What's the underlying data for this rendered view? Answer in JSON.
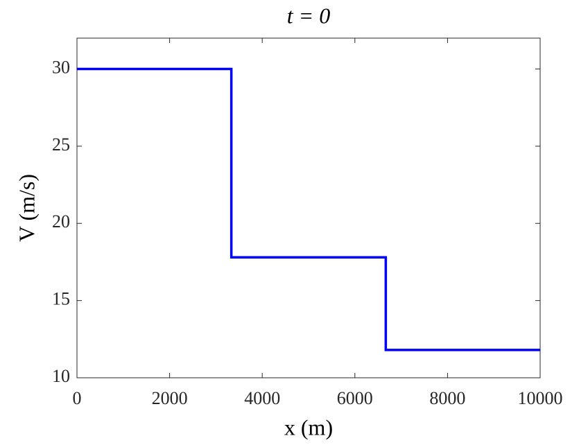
{
  "chart_data": {
    "type": "line",
    "title": "t = 0",
    "x_label": "x (m)",
    "y_label": "V (m/s)",
    "x": [
      0,
      3333,
      3333,
      6667,
      6667,
      10000
    ],
    "series": [
      {
        "name": "V",
        "color": "#0000ff",
        "values": [
          30,
          30,
          17.8,
          17.8,
          11.8,
          11.8
        ]
      }
    ],
    "xlim": [
      0,
      10000
    ],
    "xticks": [
      0,
      2000,
      4000,
      6000,
      8000,
      10000
    ],
    "ylim": [
      10,
      32
    ],
    "yticks": [
      10,
      15,
      20,
      25,
      30
    ],
    "grid": false
  }
}
